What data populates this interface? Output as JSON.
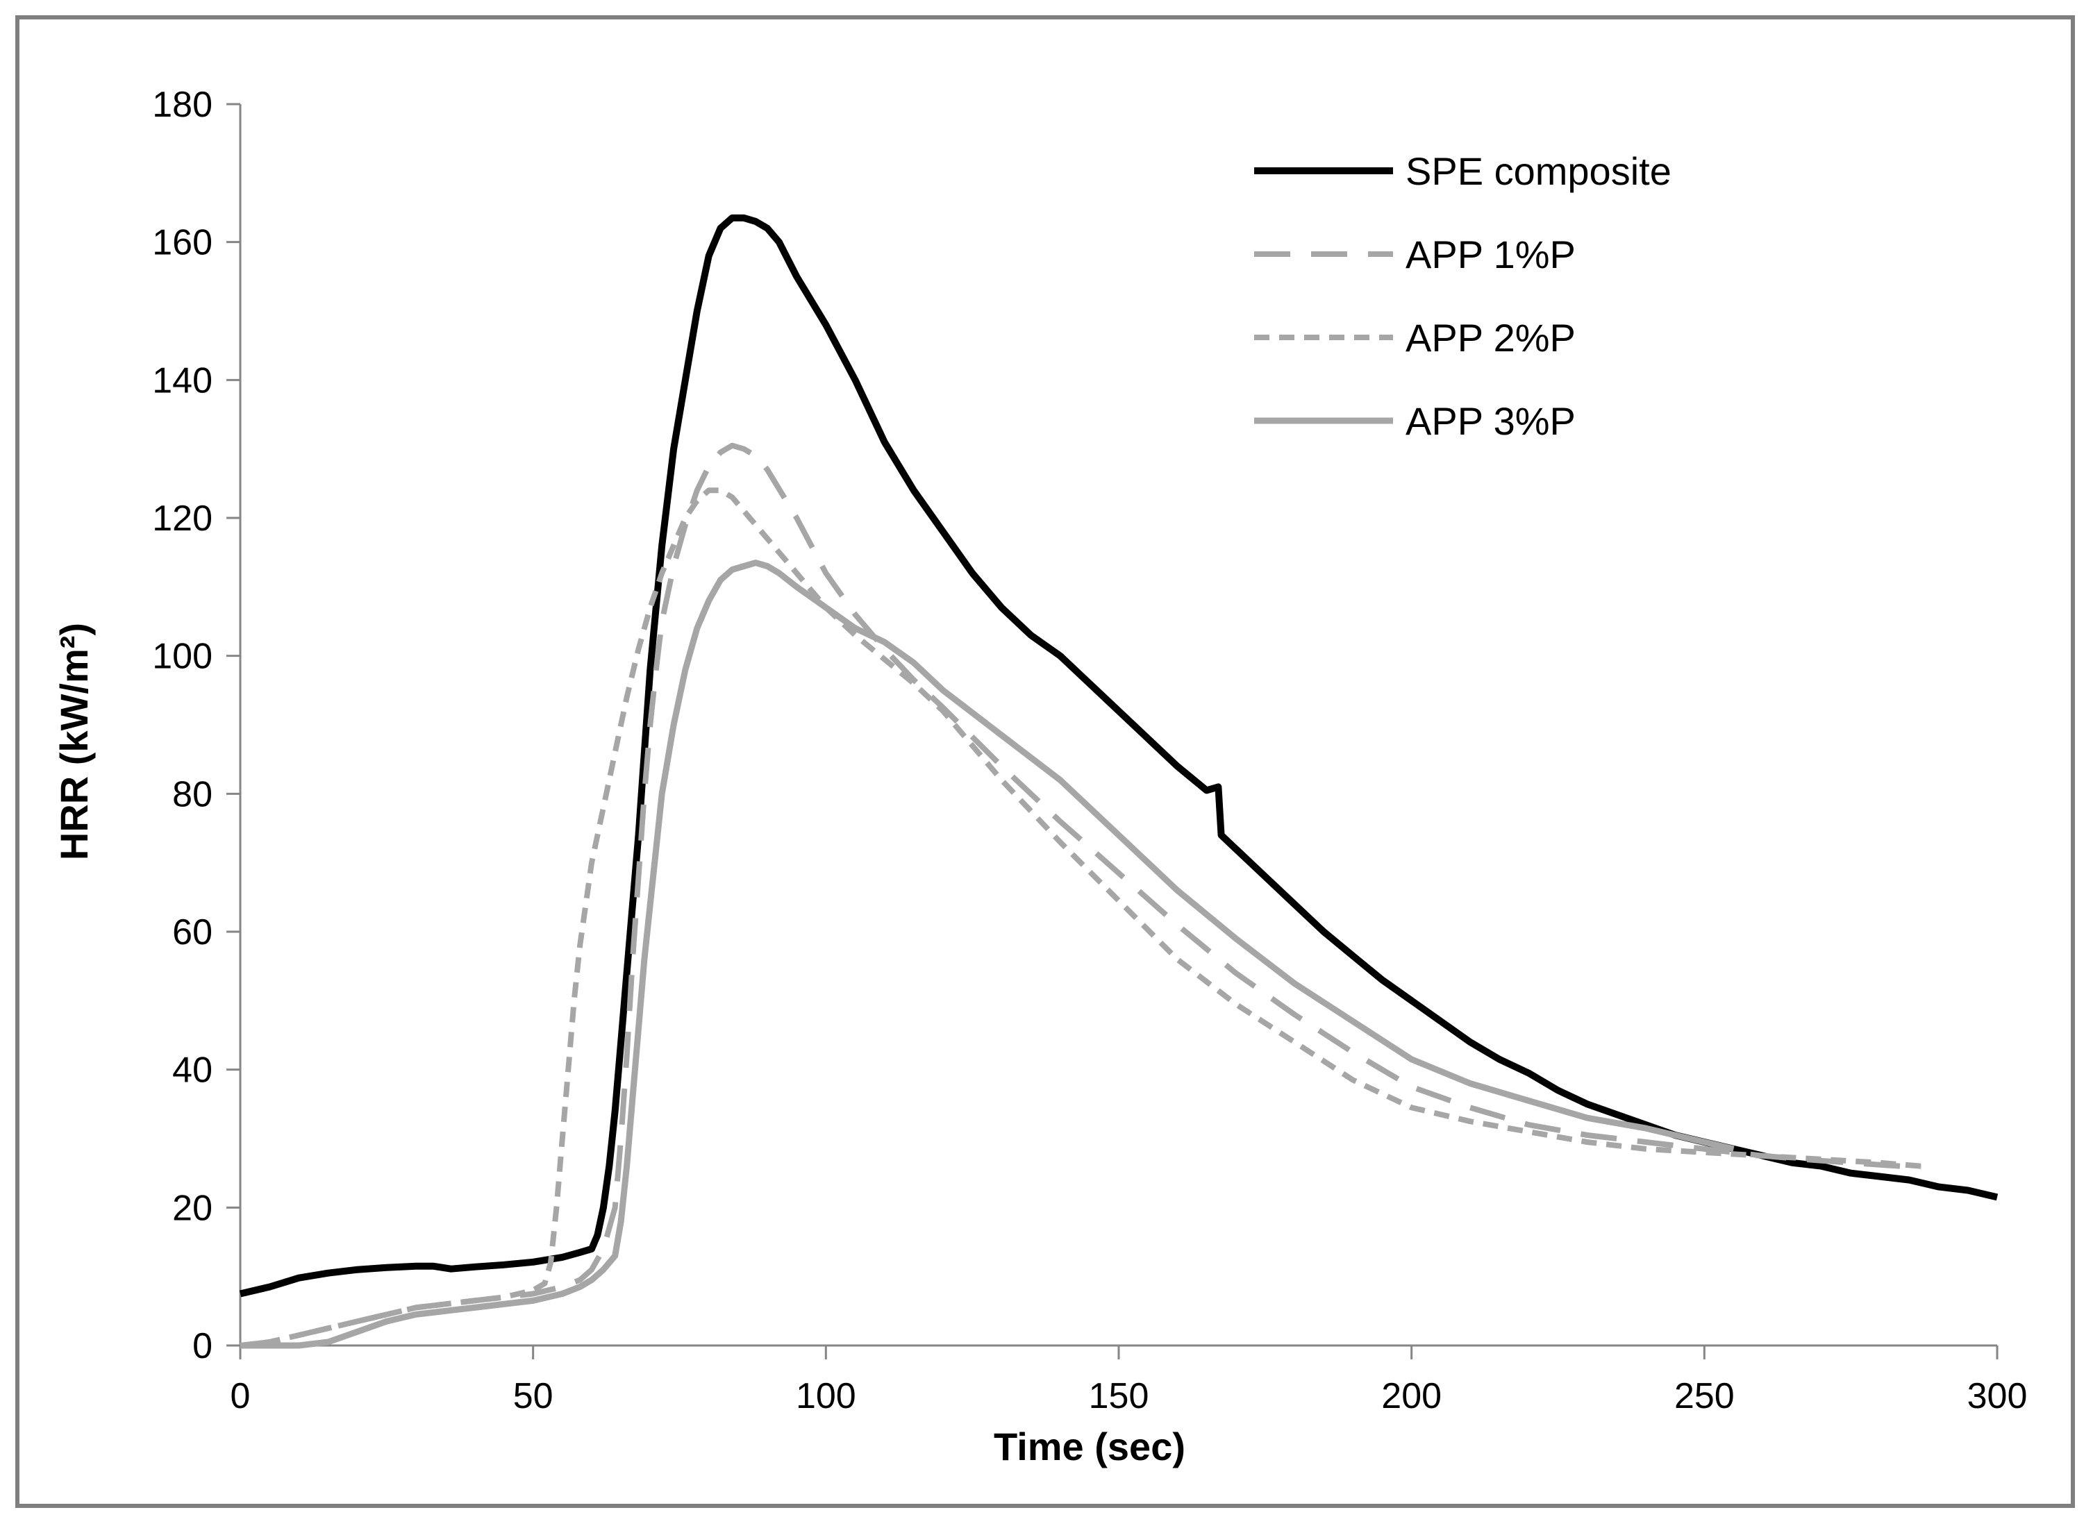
{
  "chart_data": {
    "type": "line",
    "title": "",
    "xlabel": "Time (sec)",
    "ylabel": "HRR (kW/m²)",
    "xlim": [
      0,
      300
    ],
    "ylim": [
      0,
      180
    ],
    "xticks": [
      0,
      50,
      100,
      150,
      200,
      250,
      300
    ],
    "yticks": [
      0,
      20,
      40,
      60,
      80,
      100,
      120,
      140,
      160,
      180
    ],
    "grid": false,
    "legend_position": "top-right",
    "series": [
      {
        "name": "SPE composite",
        "color": "#000000",
        "style": "solid",
        "x": [
          0,
          5,
          10,
          15,
          20,
          25,
          30,
          33,
          36,
          40,
          45,
          50,
          55,
          58,
          60,
          61,
          62,
          63,
          64,
          65,
          66,
          67,
          68,
          69,
          70,
          72,
          74,
          76,
          78,
          80,
          82,
          84,
          86,
          88,
          90,
          92,
          95,
          100,
          105,
          110,
          115,
          120,
          125,
          130,
          135,
          140,
          145,
          150,
          155,
          160,
          165,
          167,
          167.5,
          170,
          175,
          180,
          185,
          190,
          195,
          200,
          205,
          210,
          215,
          220,
          225,
          230,
          235,
          240,
          245,
          250,
          255,
          260,
          265,
          270,
          275,
          280,
          285,
          290,
          295,
          300
        ],
        "y": [
          7.5,
          8.5,
          9.8,
          10.5,
          11,
          11.3,
          11.5,
          11.5,
          11.1,
          11.4,
          11.7,
          12.1,
          12.8,
          13.5,
          14,
          16,
          20,
          26,
          34,
          44,
          54,
          64,
          74,
          86,
          98,
          116,
          130,
          140,
          150,
          158,
          162,
          163.5,
          163.5,
          163,
          162,
          160,
          155,
          148,
          140,
          131,
          124,
          118,
          112,
          107,
          103,
          100,
          96,
          92,
          88,
          84,
          80.5,
          81,
          74,
          72,
          68,
          64,
          60,
          56.5,
          53,
          50,
          47,
          44,
          41.5,
          39.5,
          37,
          35,
          33.5,
          32,
          30.5,
          29.5,
          28.5,
          27.5,
          26.5,
          26,
          25,
          24.5,
          24,
          23,
          22.5,
          21.5
        ]
      },
      {
        "name": "APP 1%P",
        "color": "#a6a6a6",
        "style": "long-dash",
        "x": [
          0,
          5,
          10,
          15,
          20,
          25,
          30,
          35,
          40,
          45,
          50,
          55,
          58,
          60,
          62,
          64,
          65,
          66,
          67,
          68,
          69,
          70,
          71,
          72,
          74,
          76,
          78,
          80,
          82,
          84,
          86,
          88,
          90,
          95,
          100,
          105,
          110,
          115,
          120,
          130,
          140,
          150,
          160,
          170,
          180,
          190,
          200,
          210,
          220,
          230,
          240,
          250,
          260,
          270,
          280,
          287
        ],
        "y": [
          0,
          0.5,
          1.5,
          2.5,
          3.5,
          4.5,
          5.5,
          6,
          6.5,
          7,
          7.5,
          8.5,
          9.5,
          11,
          14,
          20,
          30,
          42,
          56,
          68,
          80,
          90,
          98,
          105,
          113,
          119,
          124,
          127.5,
          129.5,
          130.5,
          130,
          129,
          127,
          120,
          112,
          106,
          101,
          96.5,
          92.5,
          84,
          76,
          68.5,
          61,
          54,
          48,
          42.5,
          37.5,
          34.5,
          32,
          30.5,
          29.5,
          28.5,
          27.5,
          26.8,
          26.2,
          25.8
        ]
      },
      {
        "name": "APP 2%P",
        "color": "#a6a6a6",
        "style": "short-dash",
        "x": [
          0,
          5,
          10,
          15,
          20,
          25,
          30,
          35,
          40,
          45,
          50,
          52,
          53,
          54,
          55,
          56,
          57,
          58,
          59,
          60,
          62,
          64,
          66,
          68,
          70,
          72,
          74,
          76,
          78,
          80,
          82,
          84,
          86,
          88,
          90,
          95,
          100,
          105,
          110,
          115,
          120,
          130,
          140,
          150,
          160,
          170,
          180,
          190,
          200,
          210,
          220,
          230,
          240,
          250,
          260,
          270,
          280,
          287
        ],
        "y": [
          0,
          0.5,
          1.5,
          2.5,
          3.5,
          4.5,
          5.5,
          6,
          6.5,
          7,
          8,
          9,
          12,
          20,
          30,
          40,
          50,
          58,
          64,
          70,
          78,
          86,
          94,
          101,
          107,
          112,
          116,
          120,
          122.5,
          124,
          124,
          123,
          121,
          119,
          117,
          112,
          107,
          103,
          99.5,
          96,
          92,
          82,
          73,
          64.5,
          56,
          49.5,
          44,
          38.5,
          34.5,
          32.5,
          31,
          29.5,
          28.5,
          28,
          27.5,
          27,
          26.5,
          26
        ]
      },
      {
        "name": "APP 3%P",
        "color": "#a6a6a6",
        "style": "solid",
        "x": [
          0,
          5,
          10,
          15,
          20,
          25,
          30,
          35,
          40,
          45,
          50,
          55,
          58,
          60,
          62,
          64,
          65,
          66,
          67,
          68,
          69,
          70,
          71,
          72,
          74,
          76,
          78,
          80,
          82,
          84,
          86,
          88,
          90,
          92,
          95,
          100,
          105,
          110,
          115,
          120,
          130,
          140,
          150,
          160,
          170,
          180,
          190,
          200,
          210,
          220,
          230,
          240,
          250,
          255
        ],
        "y": [
          0,
          0,
          0,
          0.5,
          2,
          3.5,
          4.5,
          5,
          5.5,
          6,
          6.5,
          7.5,
          8.5,
          9.5,
          11,
          13,
          18,
          26,
          36,
          46,
          56,
          64,
          72,
          80,
          90,
          98,
          104,
          108,
          111,
          112.5,
          113,
          113.5,
          113,
          112,
          110,
          107,
          104,
          102,
          99,
          95,
          88.5,
          82,
          74,
          66,
          59,
          52.5,
          47,
          41.5,
          38,
          35.5,
          33,
          31.5,
          29.5,
          28.5
        ]
      }
    ]
  }
}
